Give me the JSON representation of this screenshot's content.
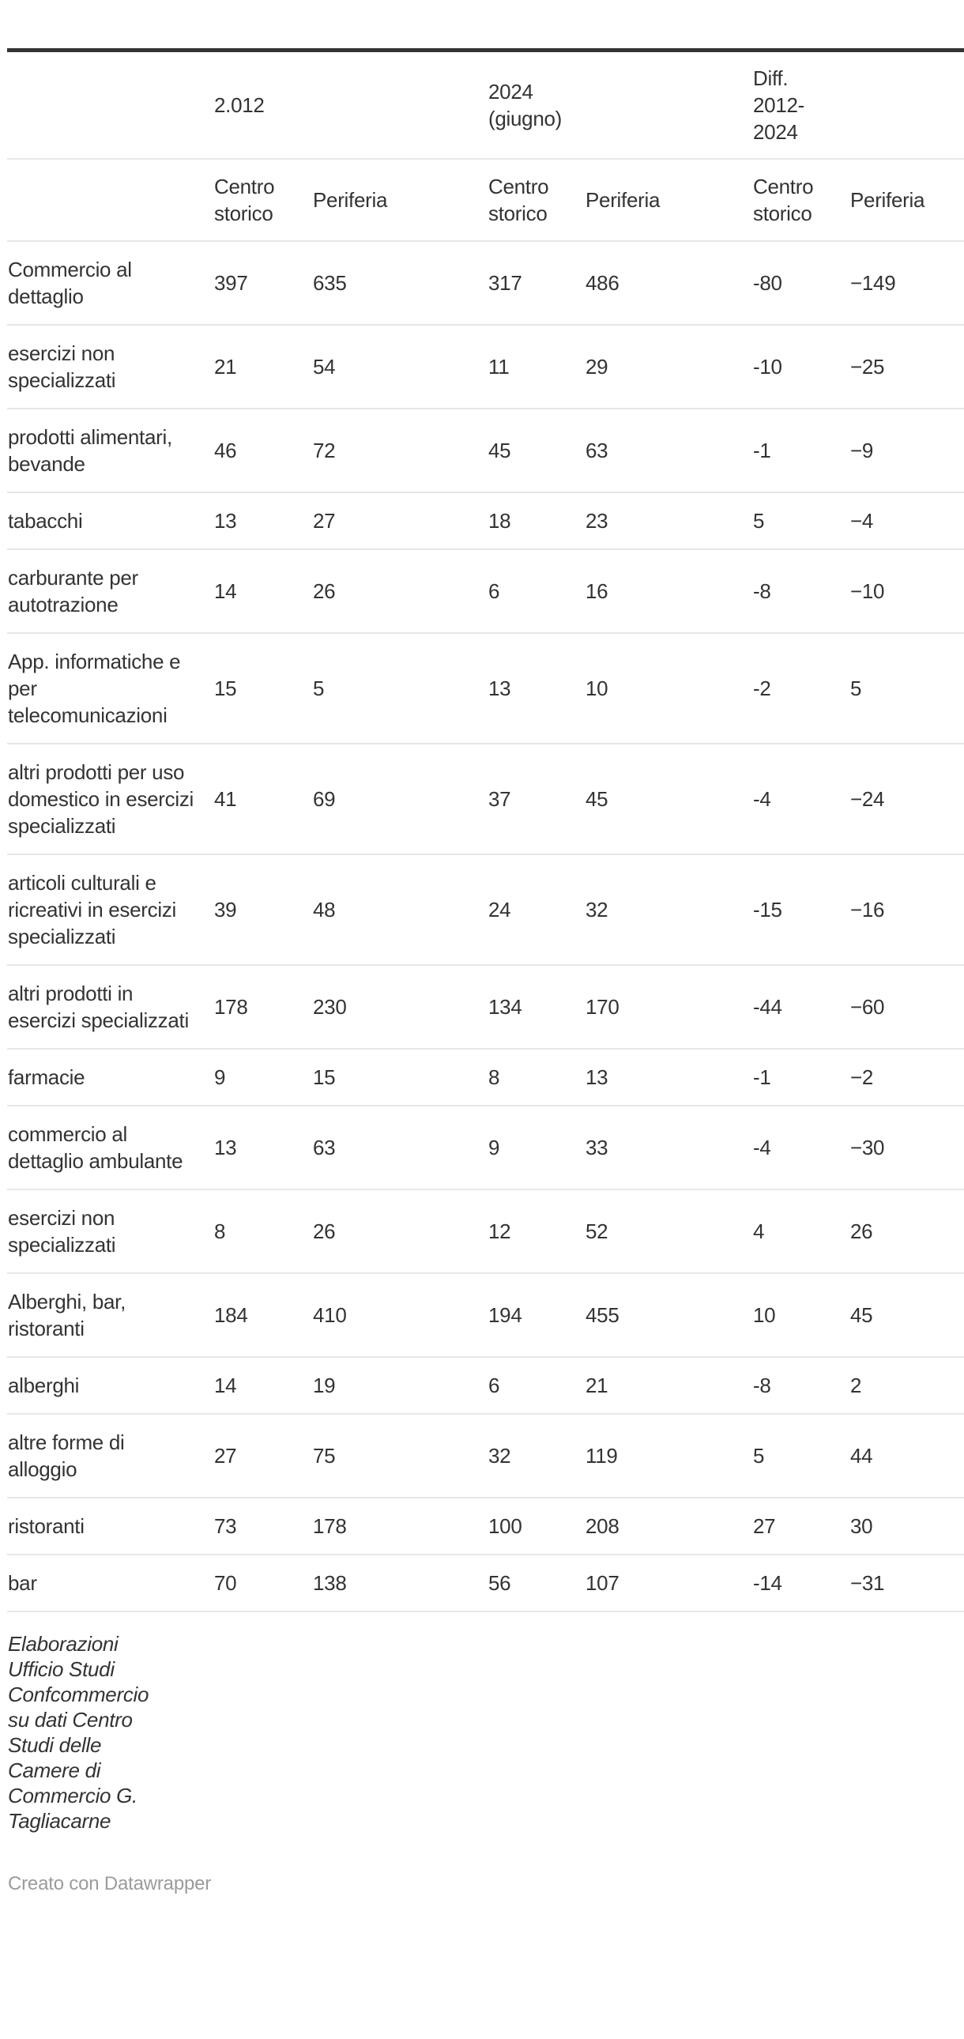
{
  "chart_data": {
    "type": "table",
    "column_groups": [
      "2.012",
      "2024 (giugno)",
      "Diff. 2012-2024"
    ],
    "columns": [
      "",
      "Centro storico",
      "Periferia",
      "Centro storico",
      "Periferia",
      "Centro storico",
      "Periferia"
    ],
    "rows": [
      {
        "label": "Commercio al dettaglio",
        "values": [
          "397",
          "635",
          "317",
          "486",
          "-80",
          "−149"
        ]
      },
      {
        "label": "esercizi non specializzati",
        "values": [
          "21",
          "54",
          "11",
          "29",
          "-10",
          "−25"
        ]
      },
      {
        "label": "prodotti alimentari, bevande",
        "values": [
          "46",
          "72",
          "45",
          "63",
          "-1",
          "−9"
        ]
      },
      {
        "label": "tabacchi",
        "values": [
          "13",
          "27",
          "18",
          "23",
          "5",
          "−4"
        ]
      },
      {
        "label": "carburante per autotrazione",
        "values": [
          "14",
          "26",
          "6",
          "16",
          "-8",
          "−10"
        ]
      },
      {
        "label": "App. informatiche e per telecomunicazioni",
        "values": [
          "15",
          "5",
          "13",
          "10",
          "-2",
          "5"
        ]
      },
      {
        "label": "altri prodotti per uso domestico in esercizi specializzati",
        "values": [
          "41",
          "69",
          "37",
          "45",
          "-4",
          "−24"
        ]
      },
      {
        "label": "articoli culturali e ricreativi in esercizi specializzati",
        "values": [
          "39",
          "48",
          "24",
          "32",
          "-15",
          "−16"
        ]
      },
      {
        "label": "altri prodotti in esercizi specializzati",
        "values": [
          "178",
          "230",
          "134",
          "170",
          "-44",
          "−60"
        ]
      },
      {
        "label": "farmacie",
        "values": [
          "9",
          "15",
          "8",
          "13",
          "-1",
          "−2"
        ]
      },
      {
        "label": "commercio al dettaglio ambulante",
        "values": [
          "13",
          "63",
          "9",
          "33",
          "-4",
          "−30"
        ]
      },
      {
        "label": "esercizi non specializzati",
        "values": [
          "8",
          "26",
          "12",
          "52",
          "4",
          "26"
        ]
      },
      {
        "label": "Alberghi, bar, ristoranti",
        "values": [
          "184",
          "410",
          "194",
          "455",
          "10",
          "45"
        ]
      },
      {
        "label": "alberghi",
        "values": [
          "14",
          "19",
          "6",
          "21",
          "-8",
          "2"
        ]
      },
      {
        "label": "altre forme di alloggio",
        "values": [
          "27",
          "75",
          "32",
          "119",
          "5",
          "44"
        ]
      },
      {
        "label": "ristoranti",
        "values": [
          "73",
          "178",
          "100",
          "208",
          "27",
          "30"
        ]
      },
      {
        "label": "bar",
        "values": [
          "70",
          "138",
          "56",
          "107",
          "-14",
          "−31"
        ]
      }
    ],
    "notes": "Elaborazioni Ufficio Studi Confcommercio su dati Centro Studi delle Camere di Commercio G. Tagliacarne",
    "credit": "Creato con Datawrapper",
    "layout": {
      "grid": "horizontal separators only",
      "legend_position": "none"
    }
  },
  "colors": {
    "text": "#333333",
    "top_rule": "#333333",
    "separator": "#e7e7e7",
    "credit_text": "#9b9b9b",
    "background": "#ffffff"
  }
}
